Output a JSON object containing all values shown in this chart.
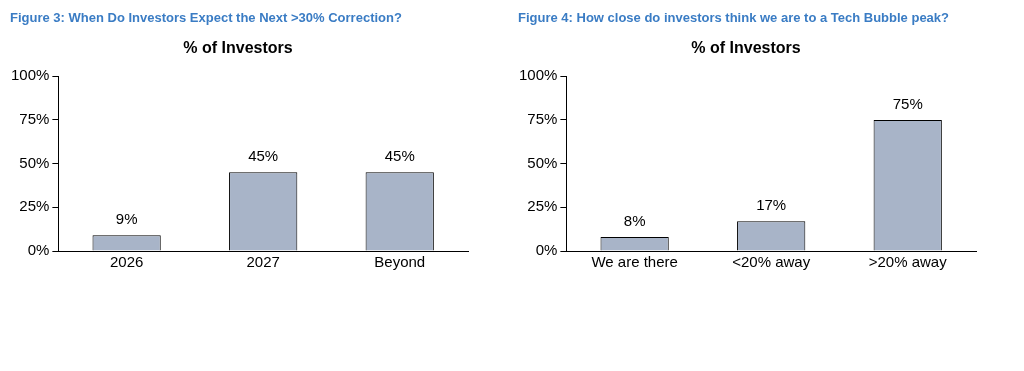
{
  "chart_data": [
    {
      "type": "bar",
      "title": "Figure 3: When Do Investors Expect the Next >30% Correction?",
      "subtitle": "% of Investors",
      "categories": [
        "2026",
        "2027",
        "Beyond"
      ],
      "values": [
        9,
        45,
        45
      ],
      "value_labels": [
        "9%",
        "45%",
        "45%"
      ],
      "color": "#a8b4c8",
      "ylim": [
        0,
        100
      ],
      "yticks": [
        {
          "value": 0,
          "label": "0%"
        },
        {
          "value": 25,
          "label": "25%"
        },
        {
          "value": 50,
          "label": "50%"
        },
        {
          "value": 75,
          "label": "75%"
        },
        {
          "value": 100,
          "label": "100%"
        }
      ],
      "grid": false,
      "legend": false
    },
    {
      "type": "bar",
      "title": "Figure 4: How close do investors think we are to a Tech Bubble peak?",
      "subtitle": "% of Investors",
      "categories": [
        "We are there",
        "<20% away",
        ">20% away"
      ],
      "values": [
        8,
        17,
        75
      ],
      "value_labels": [
        "8%",
        "17%",
        "75%"
      ],
      "color": "#a8b4c8",
      "ylim": [
        0,
        100
      ],
      "yticks": [
        {
          "value": 0,
          "label": "0%"
        },
        {
          "value": 25,
          "label": "25%"
        },
        {
          "value": 50,
          "label": "50%"
        },
        {
          "value": 75,
          "label": "75%"
        },
        {
          "value": 100,
          "label": "100%"
        }
      ],
      "grid": false,
      "legend": false
    }
  ]
}
